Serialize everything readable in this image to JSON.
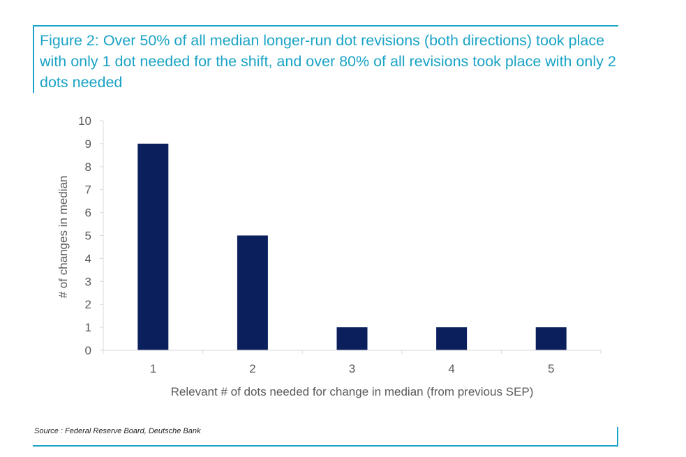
{
  "figure": {
    "title": "Figure 2: Over 50% of all median longer-run dot revisions (both directions) took place with only 1 dot needed for the shift, and over 80% of all revisions took place with only 2 dots needed",
    "source": "Source : Federal Reserve Board, Deutsche Bank"
  },
  "colors": {
    "accent": "#1aa3c6",
    "bar": "#0a1f5c",
    "axis": "#d9d9d9",
    "text": "#595959"
  },
  "chart_data": {
    "type": "bar",
    "title": "Figure 2: Over 50% of all median longer-run dot revisions (both directions) took place with only 1 dot needed for the shift, and over 80% of all revisions took place with only 2 dots needed",
    "categories": [
      "1",
      "2",
      "3",
      "4",
      "5"
    ],
    "values": [
      9,
      5,
      1,
      1,
      1
    ],
    "xlabel": "Relevant # of dots needed for change in median (from previous SEP)",
    "ylabel": "# of changes in median",
    "ylim": [
      0,
      10
    ],
    "yticks": [
      0,
      1,
      2,
      3,
      4,
      5,
      6,
      7,
      8,
      9,
      10
    ],
    "grid": false,
    "legend": "none"
  }
}
